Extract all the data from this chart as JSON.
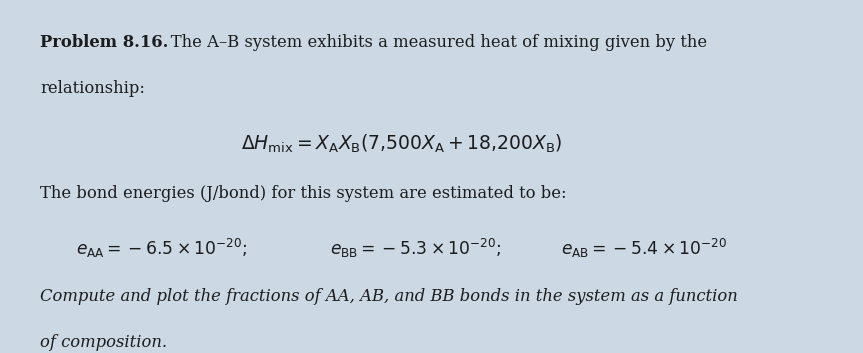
{
  "background_color": "#ccd8e4",
  "fig_width": 8.63,
  "fig_height": 3.53,
  "dpi": 100,
  "line1_bold": "Problem 8.16.",
  "line1_rest": "   The A–B system exhibits a measured heat of mixing given by the",
  "line2": "relationship:",
  "formula": "$\\Delta H_{\\mathrm{mix}} = X_{\\mathrm{A}}X_{\\mathrm{B}}(7{,}500X_{\\mathrm{A}} + 18{,}200X_{\\mathrm{B}})$",
  "bond_line": "The bond energies (J/bond) for this system are estimated to be:",
  "e_AA": "$e_{\\mathrm{AA}} = -6.5 \\times 10^{-20};$",
  "e_BB": "$e_{\\mathrm{BB}} = -5.3 \\times 10^{-20};$",
  "e_AB": "$e_{\\mathrm{AB}} = -5.4 \\times 10^{-20}$",
  "compute_line1": "Compute and plot the fractions of AA, AB, and BB bonds in the system as a function",
  "compute_line2": "of composition.",
  "text_color": "#1c1c1c",
  "font_size": 11.8,
  "formula_size": 13.5
}
